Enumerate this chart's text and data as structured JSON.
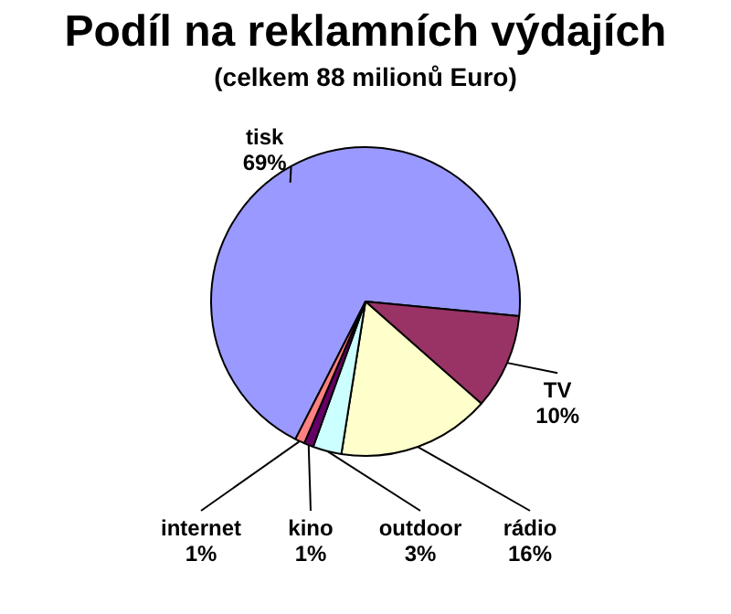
{
  "chart_data": {
    "type": "pie",
    "title": "Podíl na reklamních výdajích",
    "subtitle": "(celkem 88 milionů Euro)",
    "categories": [
      "tisk",
      "TV",
      "rádio",
      "outdoor",
      "kino",
      "internet"
    ],
    "values": [
      69,
      10,
      16,
      3,
      1,
      1
    ],
    "value_labels": [
      "69%",
      "10%",
      "16%",
      "3%",
      "1%",
      "1%"
    ],
    "colors": [
      "#9999ff",
      "#993366",
      "#ffffcc",
      "#ccffff",
      "#660066",
      "#ff8080"
    ],
    "legend": false
  }
}
